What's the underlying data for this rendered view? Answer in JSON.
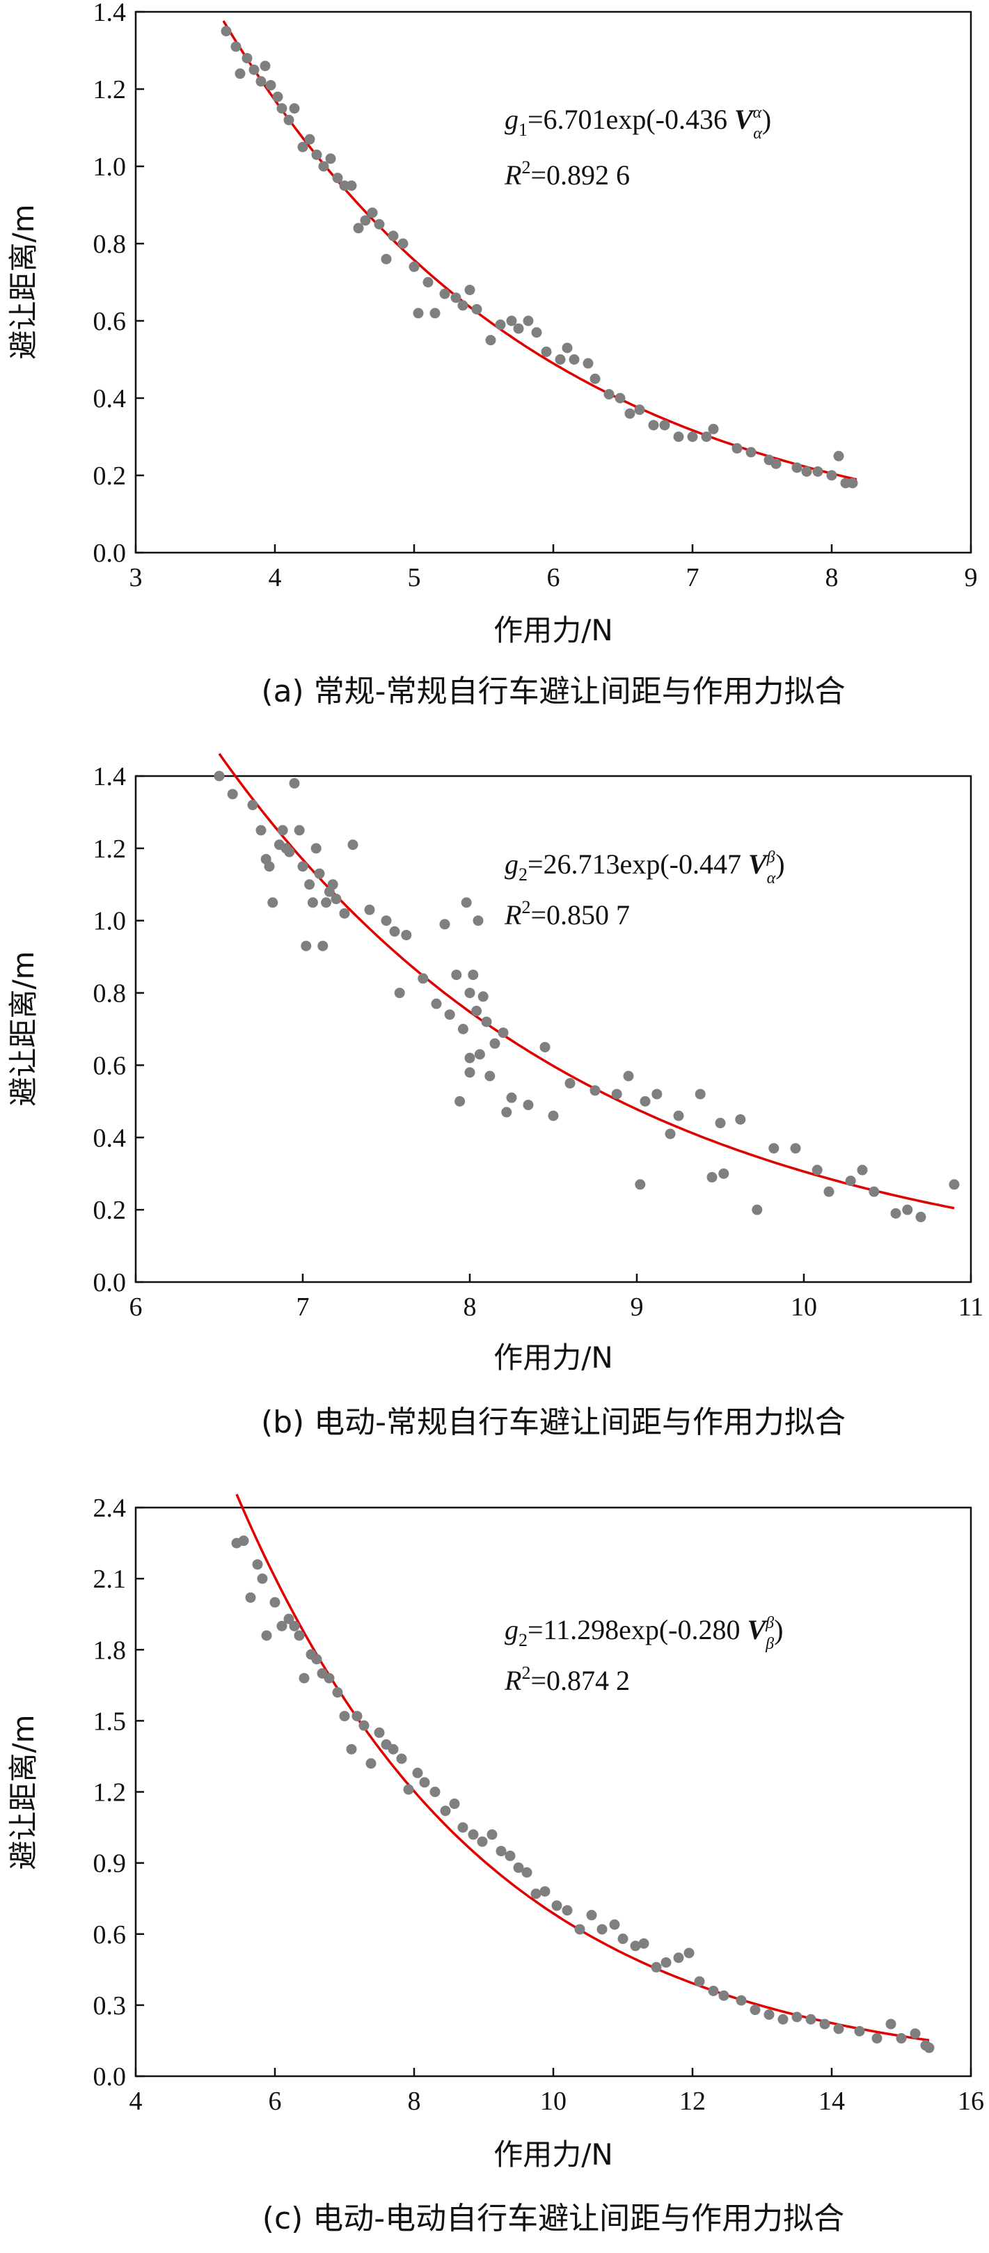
{
  "colors": {
    "points": "#7f7f7f",
    "fit": "#e00000",
    "axis": "#111111"
  },
  "chart_data": [
    {
      "type": "scatter",
      "caption": "(a) 常规-常规自行车避让间距与作用力拟合",
      "xlabel": "作用力/N",
      "ylabel": "避让距离/m",
      "xlim": [
        3,
        9
      ],
      "ylim": [
        0,
        1.4
      ],
      "xticks": [
        3,
        4,
        5,
        6,
        7,
        8,
        9
      ],
      "yticks": [
        0.0,
        0.2,
        0.4,
        0.6,
        0.8,
        1.0,
        1.2,
        1.4
      ],
      "ytick_labels": [
        "0.0",
        "0.2",
        "0.4",
        "0.6",
        "0.8",
        "1.0",
        "1.2",
        "1.4"
      ],
      "annotation": {
        "equation": "g1=6.701exp(-0.436 Vαα)",
        "r2": "R2=0.892 6"
      },
      "fit": {
        "a": 6.701,
        "b": 0.436,
        "x_range": [
          3.63,
          8.18
        ]
      },
      "points": [
        [
          3.65,
          1.35
        ],
        [
          3.72,
          1.31
        ],
        [
          3.75,
          1.24
        ],
        [
          3.8,
          1.28
        ],
        [
          3.85,
          1.25
        ],
        [
          3.9,
          1.22
        ],
        [
          3.93,
          1.26
        ],
        [
          3.97,
          1.21
        ],
        [
          4.02,
          1.18
        ],
        [
          4.05,
          1.15
        ],
        [
          4.1,
          1.12
        ],
        [
          4.14,
          1.15
        ],
        [
          4.2,
          1.05
        ],
        [
          4.25,
          1.07
        ],
        [
          4.3,
          1.03
        ],
        [
          4.35,
          1.0
        ],
        [
          4.4,
          1.02
        ],
        [
          4.45,
          0.97
        ],
        [
          4.5,
          0.95
        ],
        [
          4.55,
          0.95
        ],
        [
          4.6,
          0.84
        ],
        [
          4.65,
          0.86
        ],
        [
          4.7,
          0.88
        ],
        [
          4.75,
          0.85
        ],
        [
          4.8,
          0.76
        ],
        [
          4.85,
          0.82
        ],
        [
          4.92,
          0.8
        ],
        [
          5.0,
          0.74
        ],
        [
          5.03,
          0.62
        ],
        [
          5.1,
          0.7
        ],
        [
          5.15,
          0.62
        ],
        [
          5.22,
          0.67
        ],
        [
          5.3,
          0.66
        ],
        [
          5.35,
          0.64
        ],
        [
          5.4,
          0.68
        ],
        [
          5.45,
          0.63
        ],
        [
          5.55,
          0.55
        ],
        [
          5.62,
          0.59
        ],
        [
          5.7,
          0.6
        ],
        [
          5.75,
          0.58
        ],
        [
          5.82,
          0.6
        ],
        [
          5.88,
          0.57
        ],
        [
          5.95,
          0.52
        ],
        [
          6.05,
          0.5
        ],
        [
          6.1,
          0.53
        ],
        [
          6.15,
          0.5
        ],
        [
          6.25,
          0.49
        ],
        [
          6.3,
          0.45
        ],
        [
          6.4,
          0.41
        ],
        [
          6.48,
          0.4
        ],
        [
          6.55,
          0.36
        ],
        [
          6.62,
          0.37
        ],
        [
          6.72,
          0.33
        ],
        [
          6.8,
          0.33
        ],
        [
          6.9,
          0.3
        ],
        [
          7.0,
          0.3
        ],
        [
          7.1,
          0.3
        ],
        [
          7.15,
          0.32
        ],
        [
          7.32,
          0.27
        ],
        [
          7.42,
          0.26
        ],
        [
          7.55,
          0.24
        ],
        [
          7.6,
          0.23
        ],
        [
          7.75,
          0.22
        ],
        [
          7.82,
          0.21
        ],
        [
          7.9,
          0.21
        ],
        [
          8.0,
          0.2
        ],
        [
          8.05,
          0.25
        ],
        [
          8.1,
          0.18
        ],
        [
          8.15,
          0.18
        ]
      ]
    },
    {
      "type": "scatter",
      "caption": "(b) 电动-常规自行车避让间距与作用力拟合",
      "xlabel": "作用力/N",
      "ylabel": "避让距离/m",
      "xlim": [
        6,
        11
      ],
      "ylim": [
        0,
        1.4
      ],
      "xticks": [
        6,
        7,
        8,
        9,
        10,
        11
      ],
      "yticks": [
        0.0,
        0.2,
        0.4,
        0.6,
        0.8,
        1.0,
        1.2,
        1.4
      ],
      "ytick_labels": [
        "0.0",
        "0.2",
        "0.4",
        "0.6",
        "0.8",
        "1.0",
        "1.2",
        "1.4"
      ],
      "annotation": {
        "equation": "g2=26.713exp(-0.447 Vαβ)",
        "r2": "R2=0.850 7"
      },
      "fit": {
        "a": 26.713,
        "b": 0.447,
        "x_range": [
          6.5,
          10.9
        ]
      },
      "points": [
        [
          6.5,
          1.4
        ],
        [
          6.58,
          1.35
        ],
        [
          6.7,
          1.32
        ],
        [
          6.75,
          1.25
        ],
        [
          6.78,
          1.17
        ],
        [
          6.8,
          1.15
        ],
        [
          6.82,
          1.05
        ],
        [
          6.86,
          1.21
        ],
        [
          6.88,
          1.25
        ],
        [
          6.9,
          1.2
        ],
        [
          6.92,
          1.19
        ],
        [
          6.95,
          1.38
        ],
        [
          6.98,
          1.25
        ],
        [
          7.0,
          1.15
        ],
        [
          7.02,
          0.93
        ],
        [
          7.04,
          1.1
        ],
        [
          7.06,
          1.05
        ],
        [
          7.08,
          1.2
        ],
        [
          7.1,
          1.13
        ],
        [
          7.12,
          0.93
        ],
        [
          7.14,
          1.05
        ],
        [
          7.16,
          1.08
        ],
        [
          7.18,
          1.1
        ],
        [
          7.2,
          1.06
        ],
        [
          7.25,
          1.02
        ],
        [
          7.3,
          1.21
        ],
        [
          7.4,
          1.03
        ],
        [
          7.5,
          1.0
        ],
        [
          7.55,
          0.97
        ],
        [
          7.58,
          0.8
        ],
        [
          7.62,
          0.96
        ],
        [
          7.72,
          0.84
        ],
        [
          7.8,
          0.77
        ],
        [
          7.85,
          0.99
        ],
        [
          7.88,
          0.74
        ],
        [
          7.92,
          0.85
        ],
        [
          7.94,
          0.5
        ],
        [
          7.96,
          0.7
        ],
        [
          7.98,
          1.05
        ],
        [
          8.0,
          0.58
        ],
        [
          8.0,
          0.62
        ],
        [
          8.0,
          0.8
        ],
        [
          8.02,
          0.85
        ],
        [
          8.04,
          0.75
        ],
        [
          8.05,
          1.0
        ],
        [
          8.06,
          0.63
        ],
        [
          8.08,
          0.79
        ],
        [
          8.1,
          0.72
        ],
        [
          8.12,
          0.57
        ],
        [
          8.15,
          0.66
        ],
        [
          8.2,
          0.69
        ],
        [
          8.22,
          0.47
        ],
        [
          8.25,
          0.51
        ],
        [
          8.35,
          0.49
        ],
        [
          8.45,
          0.65
        ],
        [
          8.5,
          0.46
        ],
        [
          8.6,
          0.55
        ],
        [
          8.75,
          0.53
        ],
        [
          8.88,
          0.52
        ],
        [
          8.95,
          0.57
        ],
        [
          9.02,
          0.27
        ],
        [
          9.05,
          0.5
        ],
        [
          9.12,
          0.52
        ],
        [
          9.2,
          0.41
        ],
        [
          9.25,
          0.46
        ],
        [
          9.38,
          0.52
        ],
        [
          9.45,
          0.29
        ],
        [
          9.5,
          0.44
        ],
        [
          9.52,
          0.3
        ],
        [
          9.62,
          0.45
        ],
        [
          9.72,
          0.2
        ],
        [
          9.82,
          0.37
        ],
        [
          9.95,
          0.37
        ],
        [
          10.08,
          0.31
        ],
        [
          10.15,
          0.25
        ],
        [
          10.28,
          0.28
        ],
        [
          10.35,
          0.31
        ],
        [
          10.42,
          0.25
        ],
        [
          10.55,
          0.19
        ],
        [
          10.62,
          0.2
        ],
        [
          10.7,
          0.18
        ],
        [
          10.9,
          0.27
        ]
      ]
    },
    {
      "type": "scatter",
      "caption": "(c) 电动-电动自行车避让间距与作用力拟合",
      "xlabel": "作用力/N",
      "ylabel": "避让距离/m",
      "xlim": [
        4,
        16
      ],
      "ylim": [
        0,
        2.4
      ],
      "xticks": [
        4,
        6,
        8,
        10,
        12,
        14,
        16
      ],
      "yticks": [
        0.0,
        0.3,
        0.6,
        0.9,
        1.2,
        1.5,
        1.8,
        2.1,
        2.4
      ],
      "ytick_labels": [
        "0.0",
        "0.3",
        "0.6",
        "0.9",
        "1.2",
        "1.5",
        "1.8",
        "2.1",
        "2.4"
      ],
      "annotation": {
        "equation": "g2=11.298exp(-0.280 Vββ)",
        "r2": "R2=0.874 2"
      },
      "fit": {
        "a": 11.298,
        "b": 0.28,
        "x_range": [
          5.45,
          15.4
        ]
      },
      "points": [
        [
          5.45,
          2.25
        ],
        [
          5.55,
          2.26
        ],
        [
          5.65,
          2.02
        ],
        [
          5.75,
          2.16
        ],
        [
          5.82,
          2.1
        ],
        [
          5.88,
          1.86
        ],
        [
          6.0,
          2.0
        ],
        [
          6.1,
          1.9
        ],
        [
          6.2,
          1.93
        ],
        [
          6.28,
          1.9
        ],
        [
          6.35,
          1.86
        ],
        [
          6.42,
          1.68
        ],
        [
          6.52,
          1.78
        ],
        [
          6.6,
          1.76
        ],
        [
          6.68,
          1.7
        ],
        [
          6.78,
          1.68
        ],
        [
          6.9,
          1.62
        ],
        [
          7.0,
          1.52
        ],
        [
          7.1,
          1.38
        ],
        [
          7.18,
          1.52
        ],
        [
          7.28,
          1.48
        ],
        [
          7.38,
          1.32
        ],
        [
          7.5,
          1.45
        ],
        [
          7.6,
          1.4
        ],
        [
          7.7,
          1.38
        ],
        [
          7.82,
          1.34
        ],
        [
          7.92,
          1.21
        ],
        [
          8.05,
          1.28
        ],
        [
          8.15,
          1.24
        ],
        [
          8.3,
          1.2
        ],
        [
          8.45,
          1.12
        ],
        [
          8.58,
          1.15
        ],
        [
          8.7,
          1.05
        ],
        [
          8.85,
          1.02
        ],
        [
          8.98,
          0.99
        ],
        [
          9.12,
          1.02
        ],
        [
          9.25,
          0.95
        ],
        [
          9.38,
          0.93
        ],
        [
          9.5,
          0.88
        ],
        [
          9.62,
          0.86
        ],
        [
          9.75,
          0.77
        ],
        [
          9.88,
          0.78
        ],
        [
          10.05,
          0.72
        ],
        [
          10.2,
          0.7
        ],
        [
          10.38,
          0.62
        ],
        [
          10.55,
          0.68
        ],
        [
          10.7,
          0.62
        ],
        [
          10.88,
          0.64
        ],
        [
          11.0,
          0.58
        ],
        [
          11.18,
          0.55
        ],
        [
          11.3,
          0.56
        ],
        [
          11.48,
          0.46
        ],
        [
          11.62,
          0.48
        ],
        [
          11.8,
          0.5
        ],
        [
          11.95,
          0.52
        ],
        [
          12.1,
          0.4
        ],
        [
          12.3,
          0.36
        ],
        [
          12.45,
          0.34
        ],
        [
          12.7,
          0.32
        ],
        [
          12.9,
          0.28
        ],
        [
          13.1,
          0.26
        ],
        [
          13.3,
          0.24
        ],
        [
          13.5,
          0.25
        ],
        [
          13.7,
          0.24
        ],
        [
          13.9,
          0.22
        ],
        [
          14.1,
          0.2
        ],
        [
          14.4,
          0.19
        ],
        [
          14.65,
          0.16
        ],
        [
          14.85,
          0.22
        ],
        [
          15.0,
          0.16
        ],
        [
          15.2,
          0.18
        ],
        [
          15.35,
          0.13
        ],
        [
          15.4,
          0.12
        ]
      ]
    }
  ]
}
